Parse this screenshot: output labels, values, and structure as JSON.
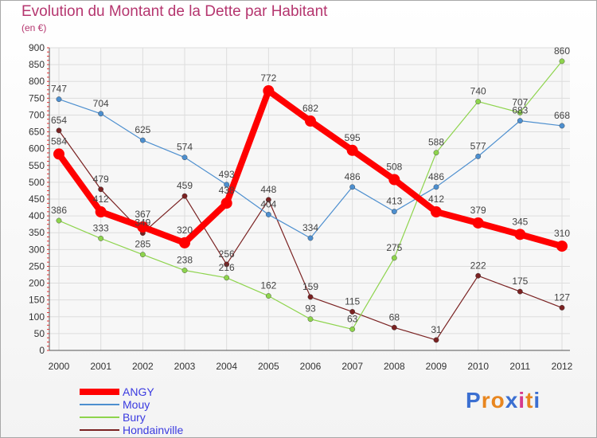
{
  "title": "Evolution du Montant de la Dette par Habitant",
  "subtitle": "(en €)",
  "brand": "Proxiti",
  "brand_colors": [
    "#3b6fd1",
    "#e8861f",
    "#e8861f",
    "#3b6fd1",
    "#d63a8e",
    "#e8861f",
    "#3b6fd1"
  ],
  "chart_data": {
    "type": "line",
    "title": "Evolution du Montant de la Dette par Habitant",
    "subtitle": "(en €)",
    "xlabel": "",
    "ylabel": "",
    "x": [
      2000,
      2001,
      2002,
      2003,
      2004,
      2005,
      2006,
      2007,
      2008,
      2009,
      2010,
      2011,
      2012
    ],
    "yticks": [
      0,
      50,
      100,
      150,
      200,
      250,
      300,
      350,
      400,
      450,
      500,
      550,
      600,
      650,
      700,
      750,
      800,
      850,
      900
    ],
    "ylim": [
      0,
      900
    ],
    "grid": true,
    "legend": "bottom-left",
    "series": [
      {
        "name": "ANGY",
        "color": "#ff0000",
        "values": [
          584,
          412,
          367,
          320,
          438,
          772,
          682,
          595,
          508,
          412,
          379,
          345,
          310
        ]
      },
      {
        "name": "Mouy",
        "color": "#4d8fcf",
        "values": [
          747,
          704,
          625,
          574,
          493,
          404,
          334,
          486,
          413,
          486,
          577,
          683,
          668
        ]
      },
      {
        "name": "Bury",
        "color": "#8ed44d",
        "values": [
          386,
          333,
          285,
          238,
          216,
          162,
          93,
          63,
          275,
          588,
          740,
          707,
          860
        ]
      },
      {
        "name": "Hondainville",
        "color": "#7a2222",
        "values": [
          654,
          479,
          349,
          459,
          256,
          448,
          159,
          115,
          68,
          31,
          222,
          175,
          127
        ]
      }
    ]
  }
}
